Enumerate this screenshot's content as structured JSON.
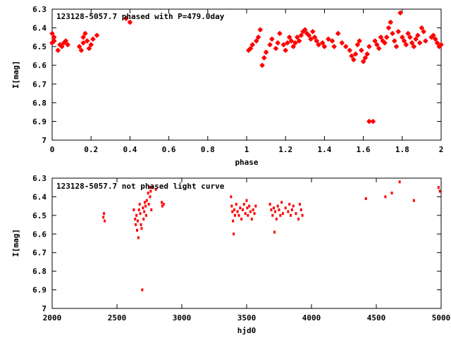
{
  "chart_data": [
    {
      "type": "scatter",
      "title": "123128-5057.7 phased with P=479.0day",
      "xlabel": "phase",
      "ylabel": "I[mag]",
      "xlim": [
        0,
        2
      ],
      "ylim": [
        6.3,
        7.0
      ],
      "y_inverted": true,
      "x_ticks": [
        "0",
        "0.2",
        "0.4",
        "0.6",
        "0.8",
        "1",
        "1.2",
        "1.4",
        "1.6",
        "1.8",
        "2"
      ],
      "y_ticks": [
        "6.3",
        "6.4",
        "6.5",
        "6.6",
        "6.7",
        "6.8",
        "6.9",
        "7"
      ],
      "grid": false,
      "marker_color": "#ff0000",
      "marker": "star",
      "points": [
        [
          0.0,
          6.43
        ],
        [
          0.01,
          6.45
        ],
        [
          0.0,
          6.48
        ],
        [
          0.01,
          6.47
        ],
        [
          0.04,
          6.49
        ],
        [
          0.03,
          6.52
        ],
        [
          0.05,
          6.5
        ],
        [
          0.06,
          6.48
        ],
        [
          0.07,
          6.47
        ],
        [
          0.08,
          6.49
        ],
        [
          0.14,
          6.5
        ],
        [
          0.15,
          6.52
        ],
        [
          0.16,
          6.48
        ],
        [
          0.16,
          6.45
        ],
        [
          0.17,
          6.43
        ],
        [
          0.18,
          6.47
        ],
        [
          0.19,
          6.51
        ],
        [
          0.2,
          6.49
        ],
        [
          0.21,
          6.46
        ],
        [
          0.23,
          6.44
        ],
        [
          0.38,
          6.35
        ],
        [
          0.4,
          6.37
        ],
        [
          1.01,
          6.52
        ],
        [
          1.02,
          6.51
        ],
        [
          1.03,
          6.49
        ],
        [
          1.05,
          6.47
        ],
        [
          1.06,
          6.45
        ],
        [
          1.07,
          6.41
        ],
        [
          1.08,
          6.6
        ],
        [
          1.09,
          6.56
        ],
        [
          1.1,
          6.53
        ],
        [
          1.12,
          6.49
        ],
        [
          1.13,
          6.46
        ],
        [
          1.15,
          6.51
        ],
        [
          1.16,
          6.48
        ],
        [
          1.17,
          6.43
        ],
        [
          1.19,
          6.49
        ],
        [
          1.2,
          6.52
        ],
        [
          1.21,
          6.48
        ],
        [
          1.22,
          6.45
        ],
        [
          1.23,
          6.47
        ],
        [
          1.24,
          6.5
        ],
        [
          1.25,
          6.48
        ],
        [
          1.26,
          6.45
        ],
        [
          1.27,
          6.47
        ],
        [
          1.28,
          6.44
        ],
        [
          1.29,
          6.42
        ],
        [
          1.3,
          6.41
        ],
        [
          1.31,
          6.43
        ],
        [
          1.32,
          6.44
        ],
        [
          1.33,
          6.46
        ],
        [
          1.34,
          6.42
        ],
        [
          1.35,
          6.45
        ],
        [
          1.36,
          6.47
        ],
        [
          1.37,
          6.49
        ],
        [
          1.39,
          6.48
        ],
        [
          1.4,
          6.5
        ],
        [
          1.42,
          6.46
        ],
        [
          1.44,
          6.47
        ],
        [
          1.45,
          6.5
        ],
        [
          1.47,
          6.43
        ],
        [
          1.49,
          6.48
        ],
        [
          1.51,
          6.5
        ],
        [
          1.53,
          6.52
        ],
        [
          1.54,
          6.55
        ],
        [
          1.55,
          6.57
        ],
        [
          1.56,
          6.54
        ],
        [
          1.57,
          6.49
        ],
        [
          1.58,
          6.47
        ],
        [
          1.59,
          6.52
        ],
        [
          1.6,
          6.58
        ],
        [
          1.61,
          6.56
        ],
        [
          1.62,
          6.54
        ],
        [
          1.63,
          6.5
        ],
        [
          1.63,
          6.9
        ],
        [
          1.65,
          6.9
        ],
        [
          1.66,
          6.47
        ],
        [
          1.67,
          6.49
        ],
        [
          1.68,
          6.51
        ],
        [
          1.69,
          6.45
        ],
        [
          1.7,
          6.47
        ],
        [
          1.71,
          6.48
        ],
        [
          1.72,
          6.45
        ],
        [
          1.73,
          6.4
        ],
        [
          1.74,
          6.37
        ],
        [
          1.75,
          6.43
        ],
        [
          1.76,
          6.47
        ],
        [
          1.77,
          6.5
        ],
        [
          1.78,
          6.42
        ],
        [
          1.79,
          6.32
        ],
        [
          1.8,
          6.45
        ],
        [
          1.81,
          6.47
        ],
        [
          1.82,
          6.49
        ],
        [
          1.83,
          6.43
        ],
        [
          1.84,
          6.45
        ],
        [
          1.85,
          6.48
        ],
        [
          1.86,
          6.5
        ],
        [
          1.87,
          6.46
        ],
        [
          1.88,
          6.44
        ],
        [
          1.89,
          6.48
        ],
        [
          1.9,
          6.4
        ],
        [
          1.91,
          6.42
        ],
        [
          1.92,
          6.47
        ],
        [
          1.95,
          6.45
        ],
        [
          1.96,
          6.44
        ],
        [
          1.97,
          6.46
        ],
        [
          1.98,
          6.48
        ],
        [
          1.99,
          6.5
        ],
        [
          2.0,
          6.49
        ]
      ]
    },
    {
      "type": "scatter",
      "title": "123128-5057.7 not phased light curve",
      "xlabel": "hjd0",
      "ylabel": "I[mag]",
      "xlim": [
        2000,
        5000
      ],
      "ylim": [
        6.3,
        7.0
      ],
      "y_inverted": true,
      "x_ticks": [
        "2000",
        "2500",
        "3000",
        "3500",
        "4000",
        "4500",
        "5000"
      ],
      "y_ticks": [
        "6.3",
        "6.4",
        "6.5",
        "6.6",
        "6.7",
        "6.8",
        "6.9",
        "7"
      ],
      "grid": false,
      "marker_color": "#ff0000",
      "marker": "dot",
      "points": [
        [
          2395,
          6.51
        ],
        [
          2400,
          6.49
        ],
        [
          2405,
          6.53
        ],
        [
          2630,
          6.47
        ],
        [
          2640,
          6.52
        ],
        [
          2645,
          6.55
        ],
        [
          2650,
          6.5
        ],
        [
          2655,
          6.58
        ],
        [
          2660,
          6.53
        ],
        [
          2665,
          6.62
        ],
        [
          2670,
          6.47
        ],
        [
          2675,
          6.44
        ],
        [
          2680,
          6.49
        ],
        [
          2685,
          6.55
        ],
        [
          2690,
          6.57
        ],
        [
          2695,
          6.9
        ],
        [
          2700,
          6.46
        ],
        [
          2705,
          6.52
        ],
        [
          2710,
          6.48
        ],
        [
          2715,
          6.43
        ],
        [
          2720,
          6.45
        ],
        [
          2725,
          6.5
        ],
        [
          2730,
          6.42
        ],
        [
          2740,
          6.38
        ],
        [
          2745,
          6.44
        ],
        [
          2750,
          6.35
        ],
        [
          2755,
          6.4
        ],
        [
          2760,
          6.37
        ],
        [
          2765,
          6.47
        ],
        [
          2775,
          6.35
        ],
        [
          2800,
          6.36
        ],
        [
          2845,
          6.43
        ],
        [
          2850,
          6.45
        ],
        [
          2860,
          6.44
        ],
        [
          3380,
          6.4
        ],
        [
          3385,
          6.45
        ],
        [
          3390,
          6.48
        ],
        [
          3395,
          6.53
        ],
        [
          3400,
          6.6
        ],
        [
          3405,
          6.47
        ],
        [
          3410,
          6.5
        ],
        [
          3420,
          6.44
        ],
        [
          3430,
          6.48
        ],
        [
          3440,
          6.5
        ],
        [
          3450,
          6.46
        ],
        [
          3460,
          6.52
        ],
        [
          3470,
          6.47
        ],
        [
          3480,
          6.44
        ],
        [
          3490,
          6.49
        ],
        [
          3500,
          6.42
        ],
        [
          3505,
          6.46
        ],
        [
          3510,
          6.5
        ],
        [
          3520,
          6.45
        ],
        [
          3530,
          6.48
        ],
        [
          3540,
          6.52
        ],
        [
          3550,
          6.47
        ],
        [
          3560,
          6.49
        ],
        [
          3570,
          6.45
        ],
        [
          3680,
          6.44
        ],
        [
          3690,
          6.47
        ],
        [
          3700,
          6.5
        ],
        [
          3710,
          6.46
        ],
        [
          3715,
          6.59
        ],
        [
          3720,
          6.48
        ],
        [
          3730,
          6.52
        ],
        [
          3740,
          6.45
        ],
        [
          3750,
          6.47
        ],
        [
          3760,
          6.5
        ],
        [
          3770,
          6.43
        ],
        [
          3780,
          6.49
        ],
        [
          3800,
          6.46
        ],
        [
          3820,
          6.48
        ],
        [
          3830,
          6.44
        ],
        [
          3840,
          6.5
        ],
        [
          3850,
          6.47
        ],
        [
          3860,
          6.45
        ],
        [
          3880,
          6.49
        ],
        [
          3900,
          6.52
        ],
        [
          3910,
          6.44
        ],
        [
          3920,
          6.47
        ],
        [
          3930,
          6.5
        ],
        [
          4420,
          6.41
        ],
        [
          4570,
          6.4
        ],
        [
          4620,
          6.38
        ],
        [
          4680,
          6.32
        ],
        [
          4790,
          6.42
        ],
        [
          4980,
          6.35
        ],
        [
          4990,
          6.37
        ]
      ]
    }
  ]
}
